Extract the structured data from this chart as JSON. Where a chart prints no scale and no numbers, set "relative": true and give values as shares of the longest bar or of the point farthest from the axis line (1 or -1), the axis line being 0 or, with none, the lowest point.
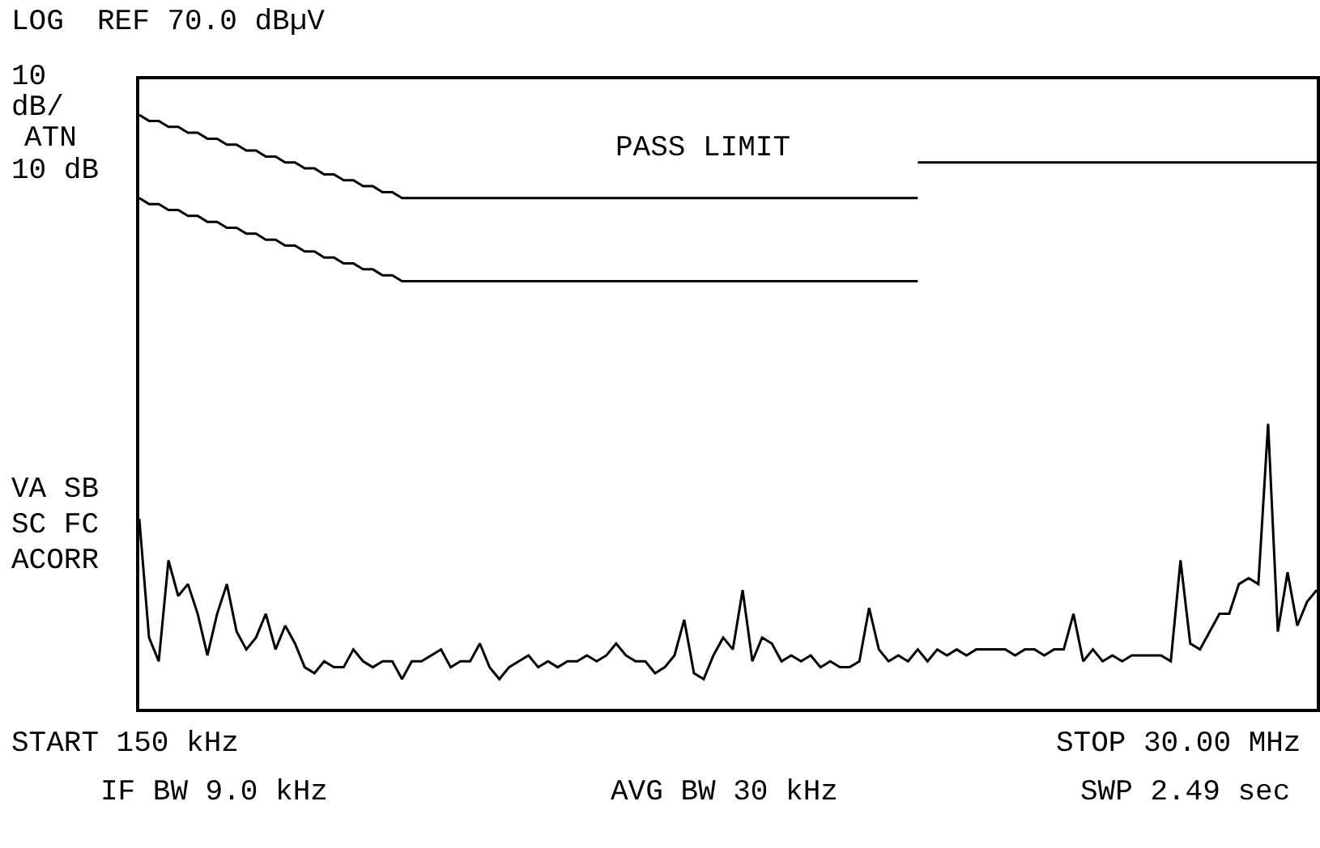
{
  "chart_data": {
    "type": "line",
    "relative": true,
    "marker": "none",
    "line_style": "solid",
    "annotations": [
      "LOG",
      "REF 70.0 dBµV",
      "10",
      "dB/",
      "ATN",
      "10 dB",
      "VA SB",
      "SC FC",
      "ACORR",
      "PASS LIMIT",
      "START 150 kHz",
      "STOP 30.00 MHz",
      "IF BW 9.0 kHz",
      "AVG BW 30 kHz",
      "SWP 2.49 sec"
    ],
    "categories": [
      null,
      null,
      null,
      null,
      null,
      null,
      null,
      null,
      null,
      null,
      null,
      null,
      null,
      null,
      null,
      null,
      null,
      null,
      null,
      null,
      null,
      null,
      null,
      null,
      null,
      null,
      null,
      null,
      null,
      null,
      null,
      null,
      null,
      null,
      null,
      null,
      null,
      null,
      null,
      null,
      null,
      null,
      null,
      null,
      null,
      null,
      null,
      null,
      null,
      null,
      null,
      null,
      null,
      null,
      null,
      null,
      null,
      null,
      null,
      null,
      null,
      null,
      null,
      null,
      null,
      null,
      null,
      null,
      null,
      null,
      null,
      null,
      null,
      null,
      null,
      null,
      null,
      null,
      null,
      null,
      null,
      null,
      null,
      null,
      null,
      null,
      null,
      null,
      null,
      null,
      null,
      null,
      null,
      null,
      null,
      null,
      null,
      null,
      null,
      null,
      null,
      null,
      null,
      null,
      null,
      null,
      null,
      null,
      null,
      null,
      null,
      null,
      null,
      null,
      null,
      null,
      null,
      null,
      null,
      null,
      null,
      null
    ],
    "series": [
      {
        "color": "#000000",
        "values": [
          0.32,
          0.12,
          0.08,
          0.25,
          0.19,
          0.21,
          0.16,
          0.09,
          0.16,
          0.21,
          0.13,
          0.1,
          0.12,
          0.16,
          0.1,
          0.14,
          0.11,
          0.07,
          0.06,
          0.08,
          0.07,
          0.07,
          0.1,
          0.08,
          0.07,
          0.08,
          0.08,
          0.05,
          0.08,
          0.08,
          0.09,
          0.1,
          0.07,
          0.08,
          0.08,
          0.11,
          0.07,
          0.05,
          0.07,
          0.08,
          0.09,
          0.07,
          0.08,
          0.07,
          0.08,
          0.08,
          0.09,
          0.08,
          0.09,
          0.11,
          0.09,
          0.08,
          0.08,
          0.06,
          0.07,
          0.09,
          0.15,
          0.06,
          0.05,
          0.09,
          0.12,
          0.1,
          0.2,
          0.08,
          0.12,
          0.11,
          0.08,
          0.09,
          0.08,
          0.09,
          0.07,
          0.08,
          0.07,
          0.07,
          0.08,
          0.17,
          0.1,
          0.08,
          0.09,
          0.08,
          0.1,
          0.08,
          0.1,
          0.09,
          0.1,
          0.09,
          0.1,
          0.1,
          0.1,
          0.1,
          0.09,
          0.1,
          0.1,
          0.09,
          0.1,
          0.1,
          0.16,
          0.08,
          0.1,
          0.08,
          0.09,
          0.08,
          0.09,
          0.09,
          0.09,
          0.09,
          0.08,
          0.25,
          0.11,
          0.1,
          0.13,
          0.16,
          0.16,
          0.21,
          0.22,
          0.21,
          0.48,
          0.13,
          0.23,
          0.14,
          0.18,
          0.2
        ]
      },
      {
        "color": "#000000",
        "values": [
          1.0,
          0.99,
          0.99,
          0.98,
          0.98,
          0.97,
          0.97,
          0.96,
          0.96,
          0.95,
          0.95,
          0.94,
          0.94,
          0.93,
          0.93,
          0.92,
          0.92,
          0.91,
          0.91,
          0.9,
          0.9,
          0.89,
          0.89,
          0.88,
          0.88,
          0.87,
          0.87,
          0.86,
          0.86,
          0.86,
          0.86,
          0.86,
          0.86,
          0.86,
          0.86,
          0.86,
          0.86,
          0.86,
          0.86,
          0.86,
          0.86,
          0.86,
          0.86,
          0.86,
          0.86,
          0.86,
          0.86,
          0.86,
          0.86,
          0.86,
          0.86,
          0.86,
          0.86,
          0.86,
          0.86,
          0.86,
          0.86,
          0.86,
          0.86,
          0.86,
          0.86,
          0.86,
          0.86,
          0.86,
          0.86,
          0.86,
          0.86,
          0.86,
          0.86,
          0.86,
          0.86,
          0.86,
          0.86,
          0.86,
          0.86,
          0.86,
          0.86,
          0.86,
          0.86,
          0.86,
          0.86,
          null,
          null,
          null,
          null,
          null,
          null,
          null,
          null,
          null,
          null,
          null,
          null,
          null,
          null,
          null,
          null,
          null,
          null,
          null,
          null,
          null,
          null,
          null,
          null,
          null,
          null,
          null,
          null,
          null,
          null,
          null,
          null,
          null,
          null,
          null,
          null,
          null,
          null,
          null,
          null,
          null
        ]
      },
      {
        "color": "#000000",
        "values": [
          0.86,
          0.85,
          0.85,
          0.84,
          0.84,
          0.83,
          0.83,
          0.82,
          0.82,
          0.81,
          0.81,
          0.8,
          0.8,
          0.79,
          0.79,
          0.78,
          0.78,
          0.77,
          0.77,
          0.76,
          0.76,
          0.75,
          0.75,
          0.74,
          0.74,
          0.73,
          0.73,
          0.72,
          0.72,
          0.72,
          0.72,
          0.72,
          0.72,
          0.72,
          0.72,
          0.72,
          0.72,
          0.72,
          0.72,
          0.72,
          0.72,
          0.72,
          0.72,
          0.72,
          0.72,
          0.72,
          0.72,
          0.72,
          0.72,
          0.72,
          0.72,
          0.72,
          0.72,
          0.72,
          0.72,
          0.72,
          0.72,
          0.72,
          0.72,
          0.72,
          0.72,
          0.72,
          0.72,
          0.72,
          0.72,
          0.72,
          0.72,
          0.72,
          0.72,
          0.72,
          0.72,
          0.72,
          0.72,
          0.72,
          0.72,
          0.72,
          0.72,
          0.72,
          0.72,
          0.72,
          0.72,
          null,
          null,
          null,
          null,
          null,
          null,
          null,
          null,
          null,
          null,
          null,
          null,
          null,
          null,
          null,
          null,
          null,
          null,
          null,
          null,
          null,
          null,
          null,
          null,
          null,
          null,
          null,
          null,
          null,
          null,
          null,
          null,
          null,
          null,
          null,
          null,
          null,
          null,
          null,
          null,
          null
        ]
      },
      {
        "color": "#000000",
        "values": [
          null,
          null,
          null,
          null,
          null,
          null,
          null,
          null,
          null,
          null,
          null,
          null,
          null,
          null,
          null,
          null,
          null,
          null,
          null,
          null,
          null,
          null,
          null,
          null,
          null,
          null,
          null,
          null,
          null,
          null,
          null,
          null,
          null,
          null,
          null,
          null,
          null,
          null,
          null,
          null,
          null,
          null,
          null,
          null,
          null,
          null,
          null,
          null,
          null,
          null,
          null,
          null,
          null,
          null,
          null,
          null,
          null,
          null,
          null,
          null,
          null,
          null,
          null,
          null,
          null,
          null,
          null,
          null,
          null,
          null,
          null,
          null,
          null,
          null,
          null,
          null,
          null,
          null,
          null,
          null,
          0.92,
          0.92,
          0.92,
          0.92,
          0.92,
          0.92,
          0.92,
          0.92,
          0.92,
          0.92,
          0.92,
          0.92,
          0.92,
          0.92,
          0.92,
          0.92,
          0.92,
          0.92,
          0.92,
          0.92,
          0.92,
          0.92,
          0.92,
          0.92,
          0.92,
          0.92,
          0.92,
          0.92,
          0.92,
          0.92,
          0.92,
          0.92,
          0.92,
          0.92,
          0.92,
          0.92,
          0.92,
          0.92,
          0.92,
          0.92,
          0.92,
          0.92
        ]
      }
    ]
  }
}
